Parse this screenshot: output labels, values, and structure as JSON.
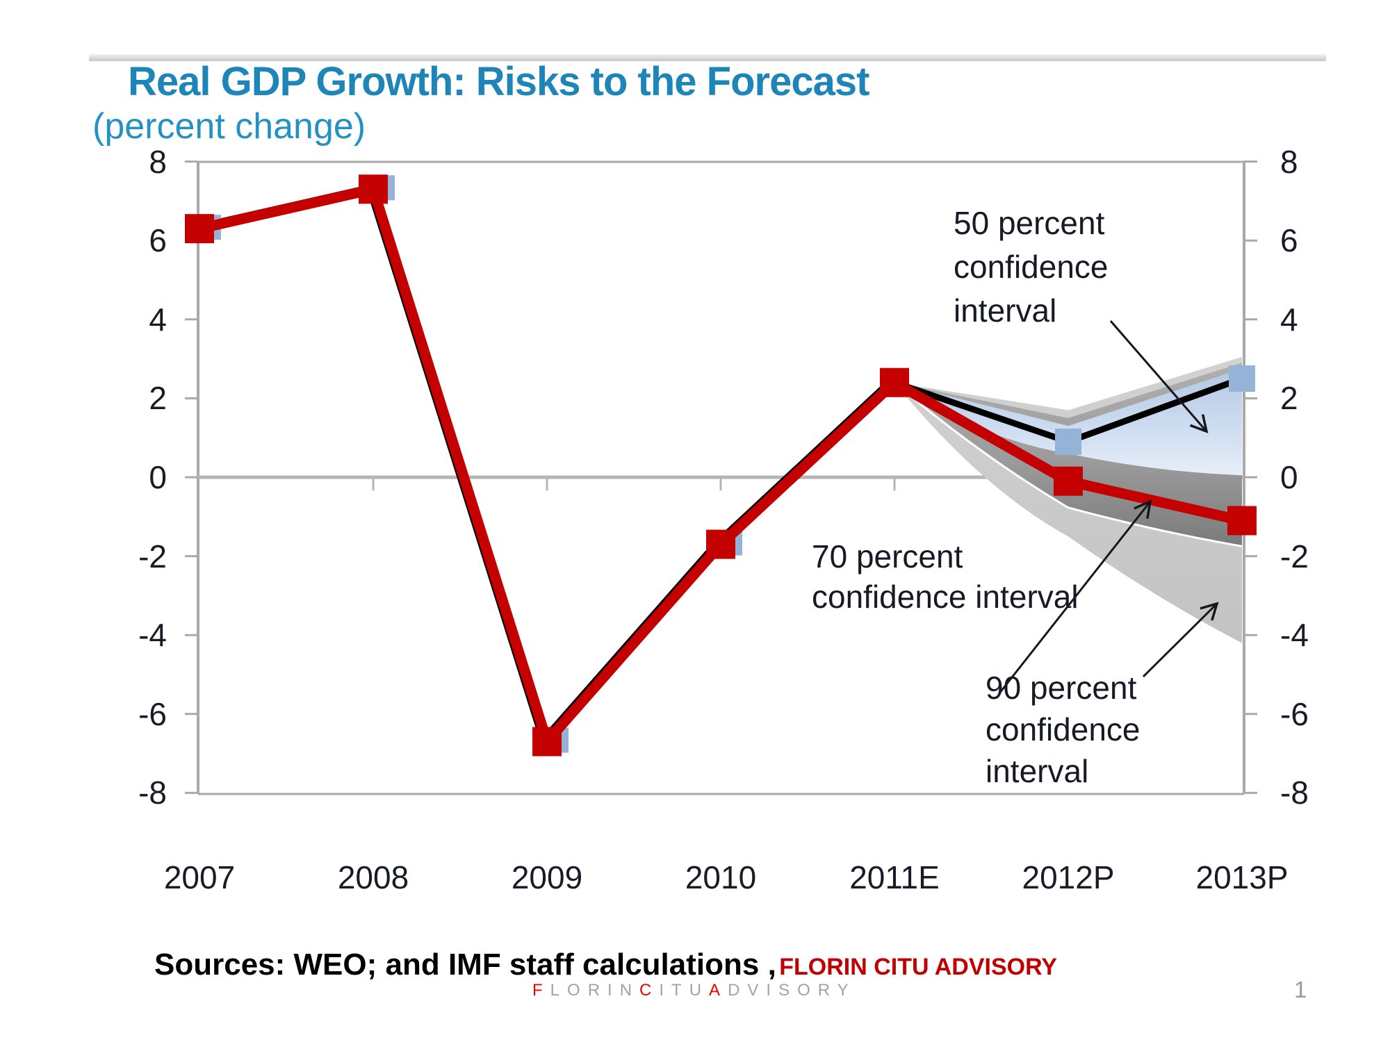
{
  "header": {
    "title": "Real GDP Growth: Risks to the Forecast",
    "subtitle": "(percent change)"
  },
  "chart_data": {
    "type": "line",
    "title": "Real GDP Growth: Risks to the Forecast",
    "subtitle": "(percent change)",
    "categories": [
      "2007",
      "2008",
      "2009",
      "2010",
      "2011E",
      "2012P",
      "2013P"
    ],
    "ylim": [
      -8,
      8
    ],
    "ytick_step": 2,
    "grid": false,
    "legend_position": "none",
    "series": [
      {
        "name": "actual-and-downside-forecast",
        "color": "#c40000",
        "marker": "square",
        "values": [
          6.3,
          7.3,
          -6.7,
          -1.7,
          2.4,
          -0.1,
          -1.1
        ]
      },
      {
        "name": "baseline-forecast",
        "color": "#000000",
        "marker": "square-blue",
        "values": [
          6.3,
          7.3,
          -6.7,
          -1.7,
          2.4,
          0.9,
          2.5
        ]
      }
    ],
    "forecast_start_index": 4,
    "bands": [
      {
        "level": "50",
        "label": "50 percent confidence interval",
        "x_indices": [
          4,
          5,
          6
        ],
        "upper": [
          2.4,
          1.3,
          2.75
        ],
        "lower": [
          2.4,
          0.6,
          0.05
        ]
      },
      {
        "level": "70",
        "label": "70 percent confidence interval",
        "x_indices": [
          4,
          5,
          6
        ],
        "upper": [
          2.4,
          1.5,
          2.9
        ],
        "lower": [
          2.4,
          -0.77,
          -1.75
        ]
      },
      {
        "level": "90",
        "label": "90 percent confidence interval",
        "x_indices": [
          4,
          5,
          6
        ],
        "upper": [
          2.4,
          1.7,
          3.05
        ],
        "lower": [
          2.4,
          -1.5,
          -4.2
        ]
      }
    ],
    "colors": {
      "red_line": "#c40000",
      "black_line": "#000000",
      "blue_marker": "#95b3d7",
      "band50_top": "#b3c8e4",
      "band50_bottom": "#e7eef8",
      "band70": "#9a9a9a",
      "band90": "#c9c9c9",
      "axis": "#a9a9a9"
    }
  },
  "axes": {
    "y_left": [
      "8",
      "6",
      "4",
      "2",
      "0",
      "-2",
      "-4",
      "-6",
      "-8"
    ],
    "y_right": [
      "8",
      "6",
      "4",
      "2",
      "0",
      "-2",
      "-4",
      "-6",
      "-8"
    ],
    "x": [
      "2007",
      "2008",
      "2009",
      "2010",
      "2011E",
      "2012P",
      "2013P"
    ]
  },
  "annotations": {
    "ci50": "50 percent\nconfidence\ninterval",
    "ci70": "70 percent\nconfidence interval",
    "ci90": "90 percent\nconfidence\ninterval"
  },
  "sources": {
    "text_black": "Sources: WEO; and IMF staff calculations ,",
    "text_red": "FLORIN CITU ADVISORY"
  },
  "footer": {
    "brand_segments": [
      {
        "text": "F",
        "accent": true
      },
      {
        "text": "LORIN",
        "accent": false
      },
      {
        "text": "C",
        "accent": true
      },
      {
        "text": "ITU",
        "accent": false
      },
      {
        "text": "A",
        "accent": true
      },
      {
        "text": "DVISORY",
        "accent": false
      }
    ],
    "page_number": "1"
  }
}
